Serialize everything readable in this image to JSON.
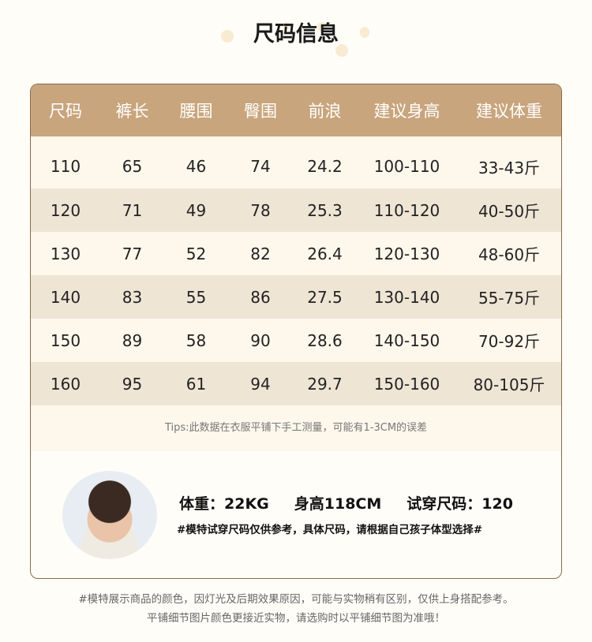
{
  "title": "尺码信息",
  "table": {
    "headers": [
      "尺码",
      "裤长",
      "腰围",
      "臀围",
      "前浪",
      "建议身高",
      "建议体重"
    ],
    "rows": [
      [
        "110",
        "65",
        "46",
        "74",
        "24.2",
        "100-110",
        "33-43斤"
      ],
      [
        "120",
        "71",
        "49",
        "78",
        "25.3",
        "110-120",
        "40-50斤"
      ],
      [
        "130",
        "77",
        "52",
        "82",
        "26.4",
        "120-130",
        "48-60斤"
      ],
      [
        "140",
        "83",
        "55",
        "86",
        "27.5",
        "130-140",
        "55-75斤"
      ],
      [
        "150",
        "89",
        "58",
        "90",
        "28.6",
        "140-150",
        "70-92斤"
      ],
      [
        "160",
        "95",
        "61",
        "94",
        "29.7",
        "150-160",
        "80-105斤"
      ]
    ],
    "tips": "Tips:此数据在衣服平铺下手工测量，可能有1-3CM的误差"
  },
  "model": {
    "weight": "体重：22KG",
    "height": "身高118CM",
    "size": "试穿尺码：120",
    "note": "#模特试穿尺码仅供参考，具体尺码，请根据自己孩子体型选择#"
  },
  "footer": {
    "line1": "#模特展示商品的颜色，因灯光及后期效果原因，可能与实物稍有区别，仅供上身搭配参考。",
    "line2": "平铺细节图片颜色更接近实物，请选购时以平铺细节图为准哦！"
  },
  "colors": {
    "header": "#c8a57c",
    "row_light": "#fdf7ec",
    "row_dark": "#efe5d5",
    "border": "#8a6a48"
  }
}
